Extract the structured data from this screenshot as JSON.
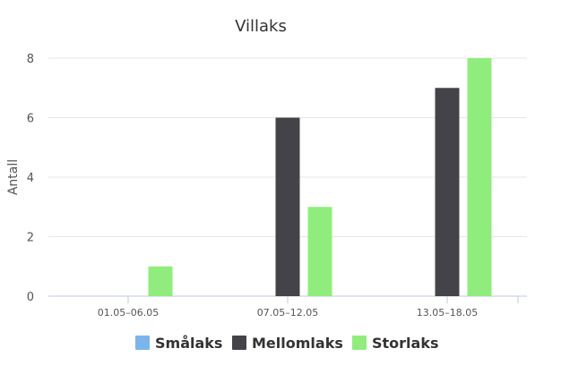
{
  "chart_data": {
    "type": "bar",
    "title": "Villaks",
    "xlabel": "",
    "ylabel": "Antall",
    "categories": [
      "01.05–06.05",
      "07.05–12.05",
      "13.05–18.05"
    ],
    "ylim": [
      0,
      8
    ],
    "yticks": [
      0,
      2,
      4,
      6,
      8
    ],
    "grid": true,
    "legend_position": "bottom",
    "series": [
      {
        "name": "Smålaks",
        "color": "#7cb5ec",
        "values": [
          0,
          0,
          0
        ]
      },
      {
        "name": "Mellomlaks",
        "color": "#434348",
        "values": [
          0,
          6,
          7
        ]
      },
      {
        "name": "Storlaks",
        "color": "#90ed7d",
        "values": [
          1,
          3,
          8
        ]
      }
    ]
  }
}
